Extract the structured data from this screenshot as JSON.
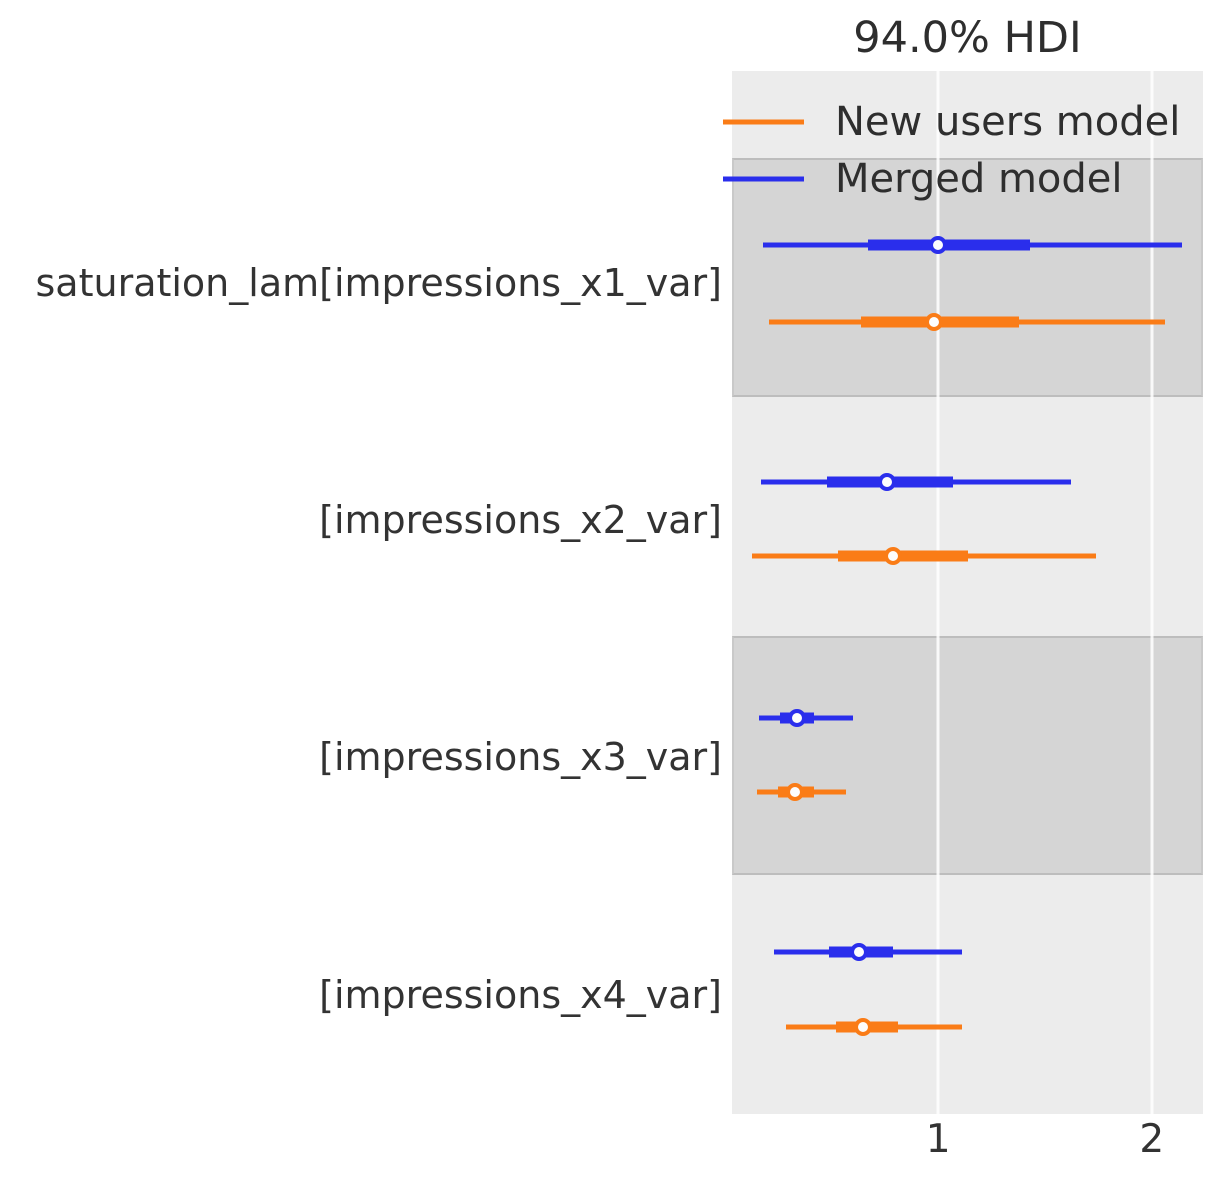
{
  "figure": {
    "title": "94.0% HDI",
    "xtick_labels": [
      "1",
      "2"
    ]
  },
  "chart_data": {
    "type": "forest",
    "title": "94.0% HDI",
    "hdi_probability": "94.0%",
    "xlim": [
      0.035,
      2.24
    ],
    "xticks": [
      1,
      2
    ],
    "grid": "vertical-white-gridlines",
    "legend_position": "upper-left-inside",
    "band_shading": "alternating-rows",
    "parameters": [
      "saturation_lam[impressions_x1_var]",
      "[impressions_x2_var]",
      "[impressions_x3_var]",
      "[impressions_x4_var]"
    ],
    "models": [
      {
        "name": "New users model",
        "color": "#fa7c17",
        "estimates": [
          {
            "parameter": "saturation_lam[impressions_x1_var]",
            "hdi_lower": 0.21,
            "q25": 0.64,
            "median": 0.98,
            "q75": 1.38,
            "hdi_upper": 2.06
          },
          {
            "parameter": "[impressions_x2_var]",
            "hdi_lower": 0.13,
            "q25": 0.53,
            "median": 0.79,
            "q75": 1.14,
            "hdi_upper": 1.74
          },
          {
            "parameter": "[impressions_x3_var]",
            "hdi_lower": 0.15,
            "q25": 0.25,
            "median": 0.33,
            "q75": 0.42,
            "hdi_upper": 0.57
          },
          {
            "parameter": "[impressions_x4_var]",
            "hdi_lower": 0.29,
            "q25": 0.52,
            "median": 0.65,
            "q75": 0.81,
            "hdi_upper": 1.11
          }
        ]
      },
      {
        "name": "Merged model",
        "color": "#2a2eec",
        "estimates": [
          {
            "parameter": "saturation_lam[impressions_x1_var]",
            "hdi_lower": 0.18,
            "q25": 0.67,
            "median": 1.0,
            "q75": 1.43,
            "hdi_upper": 2.14
          },
          {
            "parameter": "[impressions_x2_var]",
            "hdi_lower": 0.17,
            "q25": 0.48,
            "median": 0.76,
            "q75": 1.07,
            "hdi_upper": 1.62
          },
          {
            "parameter": "[impressions_x3_var]",
            "hdi_lower": 0.16,
            "q25": 0.26,
            "median": 0.34,
            "q75": 0.42,
            "hdi_upper": 0.6
          },
          {
            "parameter": "[impressions_x4_var]",
            "hdi_lower": 0.23,
            "q25": 0.49,
            "median": 0.63,
            "q75": 0.79,
            "hdi_upper": 1.11
          }
        ]
      }
    ]
  }
}
